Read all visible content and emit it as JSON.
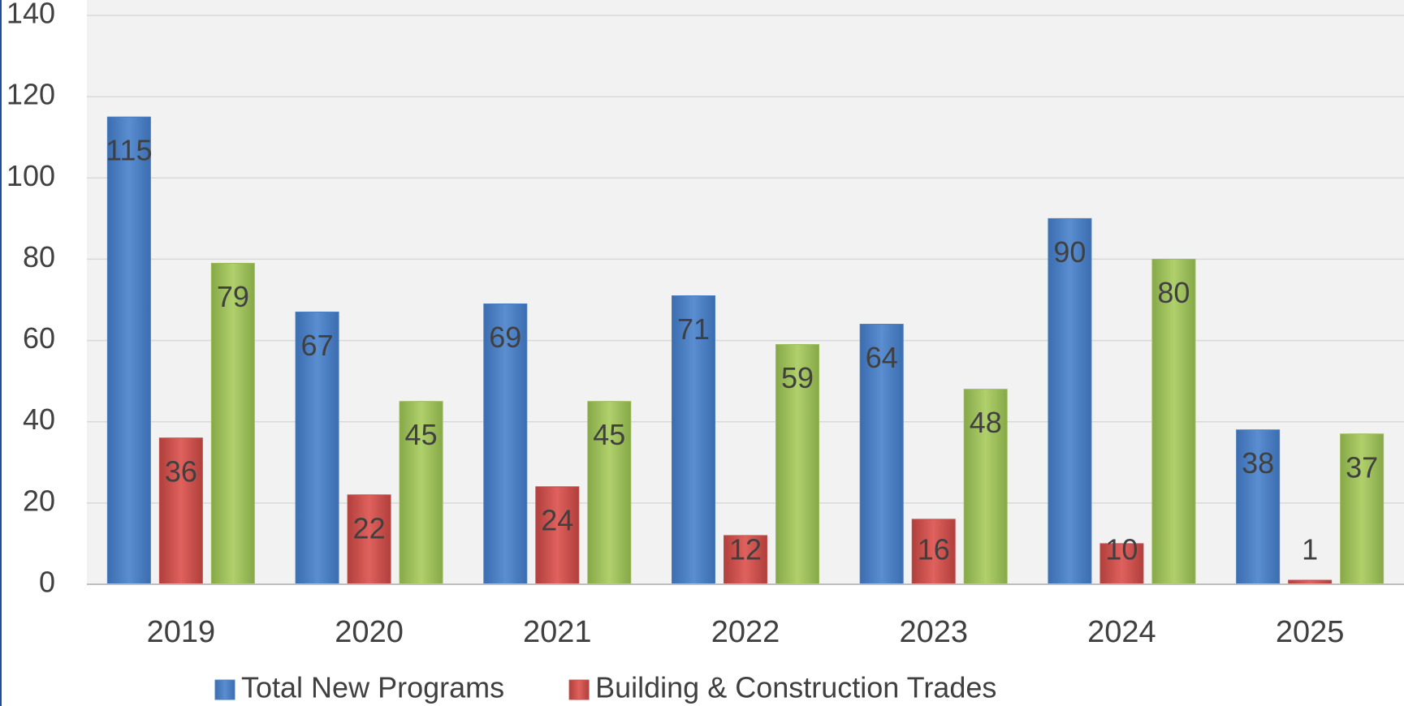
{
  "chart_data": {
    "type": "bar",
    "categories": [
      "2019",
      "2020",
      "2021",
      "2022",
      "2023",
      "2024",
      "2025"
    ],
    "series": [
      {
        "name": "Total New Programs",
        "color": "#4a7ebb",
        "values": [
          115,
          67,
          69,
          71,
          64,
          90,
          38
        ]
      },
      {
        "name": "Building & Construction Trades",
        "color": "#c0504d",
        "values": [
          36,
          22,
          24,
          12,
          16,
          10,
          1
        ]
      },
      {
        "color": "#9bbb59",
        "values": [
          79,
          45,
          45,
          59,
          48,
          80,
          37
        ]
      }
    ],
    "ylim": [
      0,
      140
    ],
    "yticks": [
      0,
      20,
      40,
      60,
      80,
      100,
      120,
      140
    ],
    "grid": true
  }
}
